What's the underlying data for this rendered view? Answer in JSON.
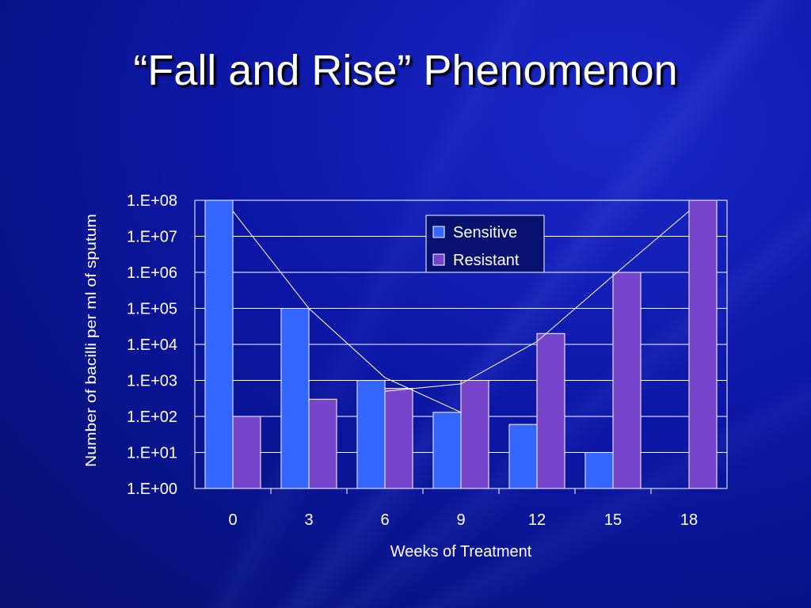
{
  "slide": {
    "title": "“Fall and Rise” Phenomenon"
  },
  "colors": {
    "sensitive": "#3366ff",
    "resistant": "#7744cc",
    "bar_border": "#ffffff",
    "gridline": "#ffffff",
    "trend_line": "#ffffff",
    "legend_bg": "#06106e"
  },
  "chart_data": {
    "type": "bar",
    "title": "",
    "xlabel": "Weeks of Treatment",
    "ylabel": "Number of bacilli per ml of sputum",
    "y_scale": "log10",
    "ylim": [
      1,
      100000000
    ],
    "y_ticks": [
      "1.E+00",
      "1.E+01",
      "1.E+02",
      "1.E+03",
      "1.E+04",
      "1.E+05",
      "1.E+06",
      "1.E+07",
      "1.E+08"
    ],
    "categories": [
      "0",
      "3",
      "6",
      "9",
      "12",
      "15",
      "18"
    ],
    "series": [
      {
        "name": "Sensitive",
        "values": [
          100000000,
          100000,
          1000,
          130,
          60,
          10,
          null
        ]
      },
      {
        "name": "Resistant",
        "values": [
          100,
          300,
          600,
          1000,
          20000,
          1000000,
          100000000
        ]
      }
    ],
    "trend_lines": [
      {
        "x": [
          "0",
          "3",
          "6",
          "9"
        ],
        "y": [
          50000000,
          100000,
          1200,
          130
        ]
      },
      {
        "x": [
          "6",
          "9",
          "12",
          "15",
          "18"
        ],
        "y": [
          500,
          800,
          12000,
          800000,
          50000000
        ]
      }
    ],
    "legend": {
      "position": "top-right",
      "entries": [
        "Sensitive",
        "Resistant"
      ]
    },
    "grid": true
  }
}
